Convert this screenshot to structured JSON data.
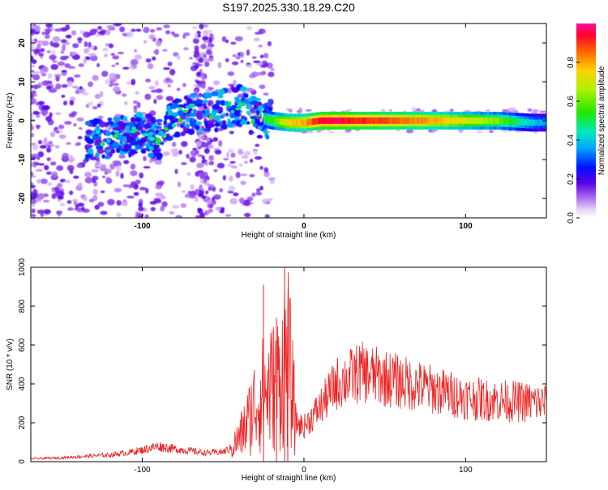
{
  "title": "S197.2025.330.18.29.C20",
  "chart_data": [
    {
      "type": "heatmap",
      "name": "spectrogram",
      "xlabel": "Height of straight line (km)",
      "ylabel": "Frequency (Hz)",
      "xlim": [
        -169,
        150
      ],
      "ylim": [
        -25,
        25
      ],
      "xticks": [
        -100,
        0,
        100
      ],
      "yticks": [
        -20,
        -10,
        0,
        10,
        20
      ],
      "colorbar": {
        "label": "Normalized spectral amplitude",
        "range": [
          0,
          1
        ],
        "ticks": [
          0.0,
          0.2,
          0.4,
          0.6,
          0.8
        ]
      },
      "ridge": {
        "x": [
          -130,
          -110,
          -100,
          -90,
          -80,
          -70,
          -60,
          -50,
          -40,
          -30,
          -20,
          -10,
          0,
          10,
          20,
          40,
          60,
          80,
          100,
          120,
          140,
          150
        ],
        "freq": [
          -5,
          -4,
          -3,
          -5,
          1,
          2,
          2,
          3,
          4,
          1,
          0,
          -0.5,
          -0.5,
          0,
          0,
          0,
          0,
          0,
          0,
          0,
          -0.5,
          -0.5
        ],
        "amplitude": [
          0.15,
          0.2,
          0.25,
          0.3,
          0.35,
          0.35,
          0.4,
          0.35,
          0.4,
          0.45,
          0.55,
          0.75,
          0.8,
          0.95,
          0.95,
          0.9,
          0.85,
          0.8,
          0.7,
          0.6,
          0.4,
          0.35
        ]
      }
    },
    {
      "type": "line",
      "name": "snr",
      "xlabel": "Height of straight line (km)",
      "ylabel": "SNR (10 * v/v)",
      "xlim": [
        -169,
        150
      ],
      "ylim": [
        0,
        1000
      ],
      "xticks": [
        -100,
        0,
        100
      ],
      "yticks": [
        0,
        200,
        400,
        600,
        800,
        1000
      ],
      "color": "#ee2222",
      "series": [
        {
          "name": "SNR",
          "x": [
            -169,
            -150,
            -140,
            -130,
            -120,
            -110,
            -100,
            -90,
            -80,
            -70,
            -60,
            -50,
            -45,
            -40,
            -35,
            -30,
            -25,
            -20,
            -15,
            -12,
            -10,
            -5,
            0,
            10,
            20,
            30,
            35,
            40,
            50,
            60,
            70,
            80,
            90,
            100,
            110,
            120,
            130,
            140,
            150
          ],
          "values": [
            15,
            20,
            25,
            30,
            35,
            45,
            60,
            80,
            65,
            55,
            45,
            50,
            70,
            120,
            200,
            300,
            350,
            380,
            420,
            520,
            550,
            200,
            180,
            280,
            400,
            440,
            460,
            450,
            430,
            410,
            390,
            370,
            350,
            330,
            320,
            315,
            310,
            305,
            300
          ]
        }
      ],
      "spikes": [
        {
          "x": -25,
          "y": 910
        },
        {
          "x": -17,
          "y": 740
        },
        {
          "x": -12,
          "y": 1000
        },
        {
          "x": -10,
          "y": 780
        }
      ]
    }
  ]
}
